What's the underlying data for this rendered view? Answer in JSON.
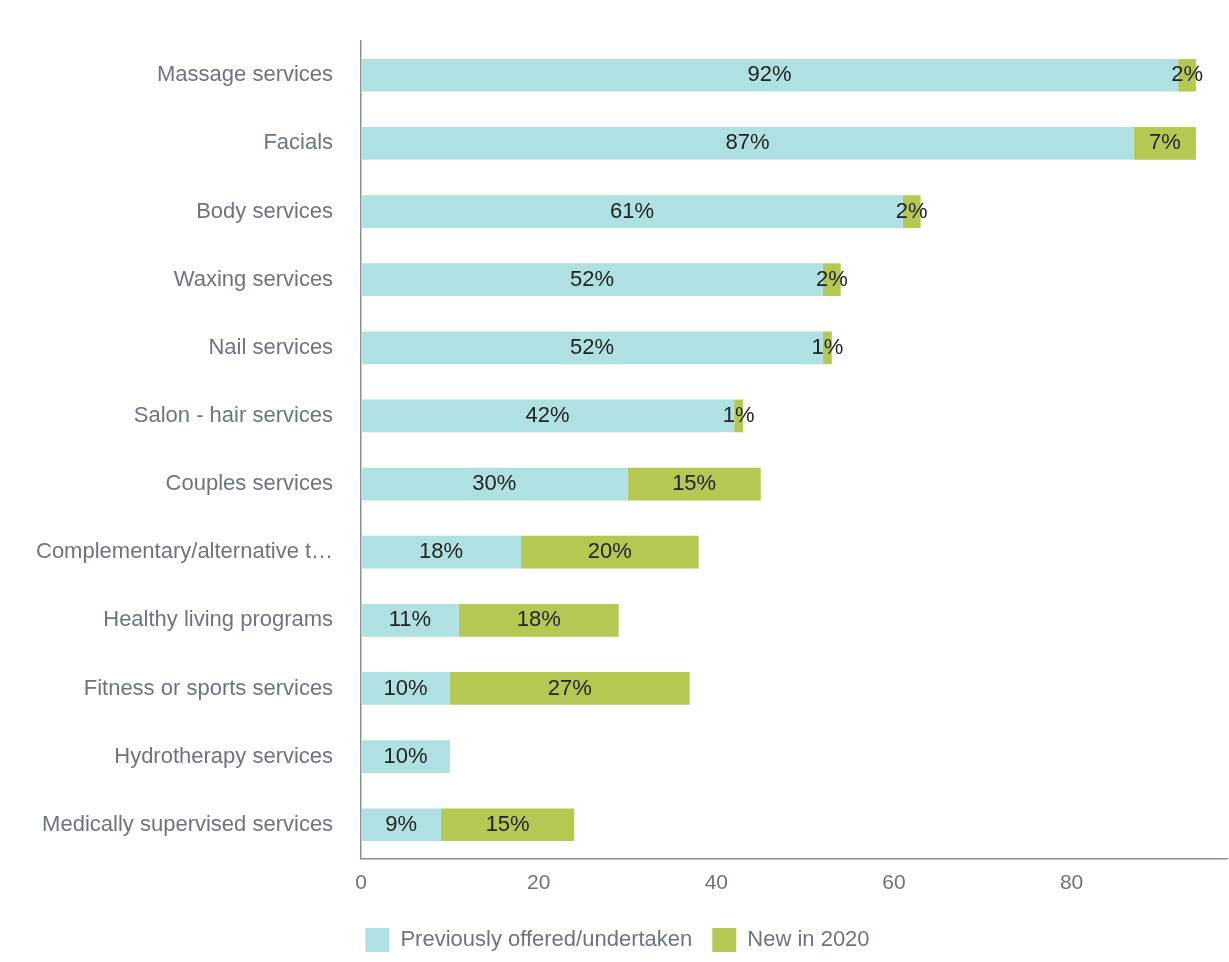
{
  "chart_data": {
    "type": "bar",
    "orientation": "horizontal",
    "stacked": true,
    "categories": [
      "Massage services",
      "Facials",
      "Body services",
      "Waxing services",
      "Nail services",
      "Salon - hair services",
      "Couples services",
      "Complementary/alternative t…",
      "Healthy living programs",
      "Fitness or sports services",
      "Hydrotherapy services",
      "Medically supervised services"
    ],
    "series": [
      {
        "name": "Previously offered/undertaken",
        "color": "#b0e1e2",
        "values": [
          92,
          87,
          61,
          52,
          52,
          42,
          30,
          18,
          11,
          10,
          10,
          9
        ],
        "value_labels": [
          "92%",
          "87%",
          "61%",
          "52%",
          "52%",
          "42%",
          "30%",
          "18%",
          "11%",
          "10%",
          "10%",
          "9%"
        ]
      },
      {
        "name": "New in 2020",
        "color": "#b5c852",
        "values": [
          2,
          7,
          2,
          2,
          1,
          1,
          15,
          20,
          18,
          27,
          null,
          15
        ],
        "value_labels": [
          "2%",
          "7%",
          "2%",
          "2%",
          "1%",
          "1%",
          "15%",
          "20%",
          "18%",
          "27%",
          null,
          "15%"
        ]
      }
    ],
    "xlim": [
      0,
      97.5
    ],
    "xticks": [
      0,
      20,
      40,
      60,
      80
    ],
    "grid": false,
    "legend": "bottom"
  }
}
